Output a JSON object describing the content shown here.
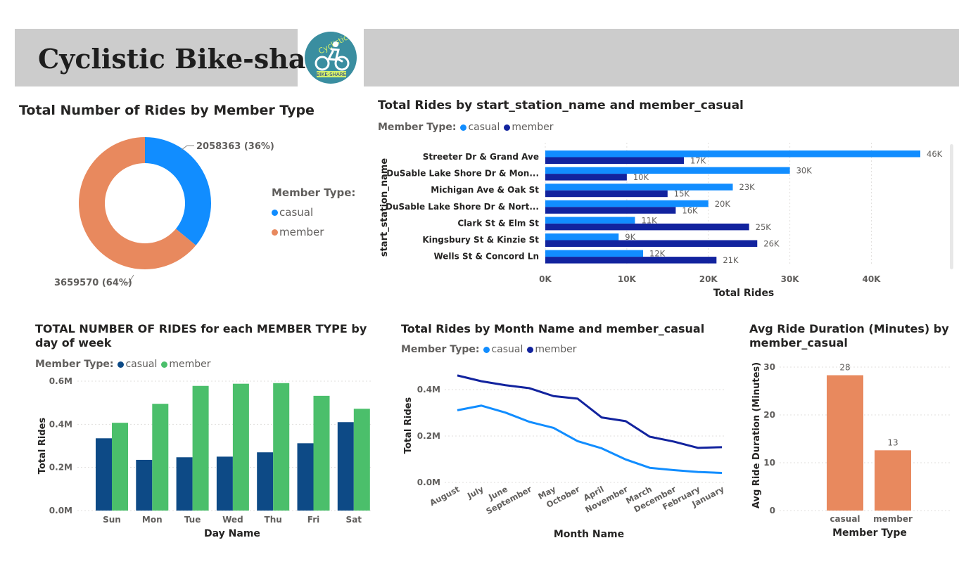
{
  "header": {
    "title": "Cyclistic Bike-share",
    "logo_text_top": "Cyclistic",
    "logo_text_bottom": "BIKE-SHARE"
  },
  "colors": {
    "casual_blue": "#118dff",
    "member_navy": "#12239e",
    "orange": "#e8895e",
    "dow_casual": "#0d4a86",
    "dow_member": "#4bbf6b",
    "header_gray": "#cccccc",
    "logo_teal": "#3a8ea0"
  },
  "visuals": {
    "donut": {
      "title": "Total Number of Rides by Member Type",
      "legend_title": "Member Type:",
      "legend": [
        "casual",
        "member"
      ],
      "labels": [
        "2058363 (36%)",
        "3659570 (64%)"
      ]
    },
    "station": {
      "title": "Total Rides by start_station_name and member_casual",
      "legend_title": "Member Type:",
      "legend": [
        "casual",
        "member"
      ],
      "ylabel": "start_station_name",
      "xlabel": "Total Rides"
    },
    "dow": {
      "title": "TOTAL NUMBER OF RIDES for each MEMBER TYPE by day of week",
      "legend_title": "Member Type:",
      "legend": [
        "casual",
        "member"
      ],
      "xlabel": "Day Name",
      "ylabel": "Total Rides"
    },
    "month": {
      "title": "Total Rides by Month Name and member_casual",
      "legend_title": "Member Type:",
      "legend": [
        "casual",
        "member"
      ],
      "xlabel": "Month Name",
      "ylabel": "Total Rides"
    },
    "duration": {
      "title": "Avg Ride Duration (Minutes) by member_casual",
      "xlabel": "Member Type",
      "ylabel": "Avg Ride Duration (Minutes)"
    }
  },
  "chart_data": [
    {
      "type": "pie",
      "title": "Total Number of Rides by Member Type",
      "categories": [
        "casual",
        "member"
      ],
      "values": [
        2058363,
        3659570
      ],
      "percent_labels": [
        "36%",
        "64%"
      ]
    },
    {
      "type": "bar",
      "orientation": "horizontal",
      "title": "Total Rides by start_station_name and member_casual",
      "categories": [
        "Streeter Dr & Grand Ave",
        "DuSable Lake Shore Dr & Mon...",
        "Michigan Ave & Oak St",
        "DuSable Lake Shore Dr & Nort...",
        "Clark St & Elm St",
        "Kingsbury St & Kinzie St",
        "Wells St & Concord Ln"
      ],
      "series": [
        {
          "name": "casual",
          "values": [
            46000,
            30000,
            23000,
            20000,
            11000,
            9000,
            12000
          ],
          "labels": [
            "46K",
            "30K",
            "23K",
            "20K",
            "11K",
            "9K",
            "12K"
          ]
        },
        {
          "name": "member",
          "values": [
            17000,
            10000,
            15000,
            16000,
            25000,
            26000,
            21000
          ],
          "labels": [
            "17K",
            "10K",
            "15K",
            "16K",
            "25K",
            "26K",
            "21K"
          ]
        }
      ],
      "xlabel": "Total Rides",
      "ylabel": "start_station_name",
      "xlim": [
        0,
        48000
      ],
      "xticks": [
        "0K",
        "10K",
        "20K",
        "30K",
        "40K"
      ],
      "grid": true
    },
    {
      "type": "bar",
      "title": "TOTAL NUMBER OF RIDES for each MEMBER TYPE by day of week",
      "categories": [
        "Sun",
        "Mon",
        "Tue",
        "Wed",
        "Thu",
        "Fri",
        "Sat"
      ],
      "series": [
        {
          "name": "casual",
          "values": [
            335000,
            235000,
            247000,
            250000,
            270000,
            312000,
            410000
          ]
        },
        {
          "name": "member",
          "values": [
            407000,
            495000,
            578000,
            588000,
            591000,
            532000,
            472000
          ]
        }
      ],
      "xlabel": "Day Name",
      "ylabel": "Total Rides",
      "ylim": [
        0,
        600000
      ],
      "yticks": [
        "0.0M",
        "0.2M",
        "0.4M",
        "0.6M"
      ],
      "grid": true
    },
    {
      "type": "line",
      "title": "Total Rides by Month Name and member_casual",
      "categories": [
        "August",
        "July",
        "June",
        "September",
        "May",
        "October",
        "April",
        "November",
        "March",
        "December",
        "February",
        "January"
      ],
      "series": [
        {
          "name": "casual",
          "values": [
            311000,
            331000,
            301000,
            261000,
            235000,
            178000,
            147000,
            99000,
            63000,
            53000,
            45000,
            41000
          ]
        },
        {
          "name": "member",
          "values": [
            461000,
            436000,
            419000,
            406000,
            372000,
            361000,
            280000,
            264000,
            197000,
            176000,
            149000,
            152000
          ]
        }
      ],
      "xlabel": "Month Name",
      "ylabel": "Total Rides",
      "ylim": [
        0,
        480000
      ],
      "yticks": [
        "0.0M",
        "0.2M",
        "0.4M"
      ],
      "grid": true
    },
    {
      "type": "bar",
      "title": "Avg Ride Duration (Minutes) by member_casual",
      "categories": [
        "casual",
        "member"
      ],
      "values": [
        28.3,
        12.6
      ],
      "data_labels": [
        "28",
        "13"
      ],
      "xlabel": "Member Type",
      "ylabel": "Avg Ride Duration (Minutes)",
      "ylim": [
        0,
        30
      ],
      "yticks": [
        "0",
        "10",
        "20",
        "30"
      ],
      "grid": true
    }
  ]
}
